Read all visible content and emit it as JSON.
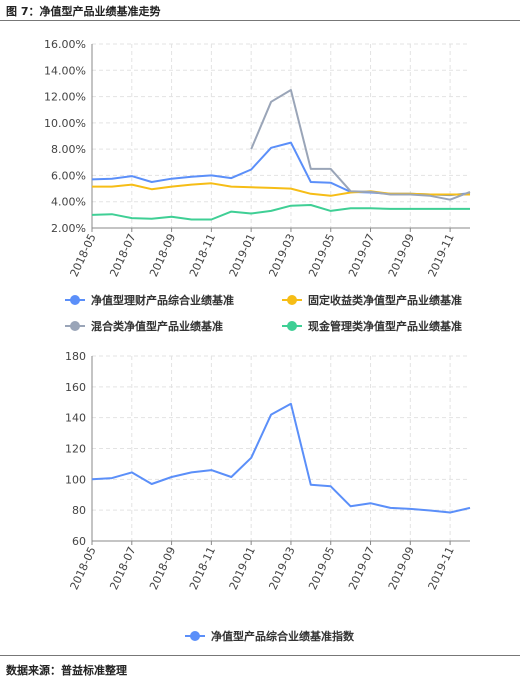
{
  "figure_caption": "图 7：净值型产品业绩基准走势",
  "source_note": "数据来源：普益标准整理",
  "chart_data": [
    {
      "type": "line",
      "categories": [
        "2018-05",
        "2018-06",
        "2018-07",
        "2018-08",
        "2018-09",
        "2018-10",
        "2018-11",
        "2018-12",
        "2019-01",
        "2019-02",
        "2019-03",
        "2019-04",
        "2019-05",
        "2019-06",
        "2019-07",
        "2019-08",
        "2019-09",
        "2019-10",
        "2019-11",
        "2019-12"
      ],
      "tick_labels": [
        "2018-05",
        "2018-07",
        "2018-09",
        "2018-11",
        "2019-01",
        "2019-03",
        "2019-05",
        "2019-07",
        "2019-09",
        "2019-11"
      ],
      "y_tick_labels": [
        "2.00%",
        "4.00%",
        "6.00%",
        "8.00%",
        "10.00%",
        "12.00%",
        "14.00%",
        "16.00%"
      ],
      "ylim": [
        2,
        16
      ],
      "y_unit": "%",
      "grid": true,
      "legend_position": "bottom",
      "series": [
        {
          "name": "净值型理财产品综合业绩基准",
          "color": "#5b8ff9",
          "values": [
            5.7,
            5.75,
            5.95,
            5.5,
            5.75,
            5.9,
            6.0,
            5.8,
            6.45,
            8.1,
            8.5,
            5.5,
            5.45,
            4.75,
            4.7,
            4.6,
            4.6,
            4.55,
            4.5,
            4.65
          ]
        },
        {
          "name": "固定收益类净值型产品业绩基准",
          "color": "#f6bd16",
          "values": [
            5.15,
            5.15,
            5.3,
            4.95,
            5.15,
            5.3,
            5.4,
            5.15,
            5.1,
            5.05,
            5.0,
            4.6,
            4.45,
            4.7,
            4.8,
            4.6,
            4.6,
            4.55,
            4.55,
            4.55
          ]
        },
        {
          "name": "混合类净值型产品业绩基准",
          "color": "#9aa5b8",
          "values": [
            null,
            null,
            null,
            null,
            null,
            null,
            null,
            null,
            8.0,
            11.6,
            12.5,
            6.5,
            6.5,
            4.8,
            4.75,
            4.55,
            4.55,
            4.45,
            4.15,
            4.75
          ]
        },
        {
          "name": "现金管理类净值型产品业绩基准",
          "color": "#3fcf95",
          "values": [
            3.0,
            3.05,
            2.75,
            2.7,
            2.85,
            2.65,
            2.65,
            3.25,
            3.1,
            3.3,
            3.7,
            3.75,
            3.3,
            3.5,
            3.5,
            3.45,
            3.45,
            3.45,
            3.45,
            3.45
          ]
        }
      ]
    },
    {
      "type": "line",
      "categories": [
        "2018-05",
        "2018-06",
        "2018-07",
        "2018-08",
        "2018-09",
        "2018-10",
        "2018-11",
        "2018-12",
        "2019-01",
        "2019-02",
        "2019-03",
        "2019-04",
        "2019-05",
        "2019-06",
        "2019-07",
        "2019-08",
        "2019-09",
        "2019-10",
        "2019-11",
        "2019-12"
      ],
      "tick_labels": [
        "2018-05",
        "2018-07",
        "2018-09",
        "2018-11",
        "2019-01",
        "2019-03",
        "2019-05",
        "2019-07",
        "2019-09",
        "2019-11"
      ],
      "y_tick_labels": [
        "60",
        "80",
        "100",
        "120",
        "140",
        "160",
        "180"
      ],
      "ylim": [
        60,
        180
      ],
      "grid": true,
      "legend_position": "bottom",
      "series": [
        {
          "name": "净值型产品综合业绩基准指数",
          "color": "#5b8ff9",
          "values": [
            100,
            100.8,
            104.5,
            97,
            101.5,
            104.5,
            106,
            101.5,
            114,
            142,
            149,
            96.5,
            95.5,
            82.5,
            84.5,
            81.5,
            80.8,
            79.8,
            78.5,
            81.5
          ]
        }
      ]
    }
  ]
}
